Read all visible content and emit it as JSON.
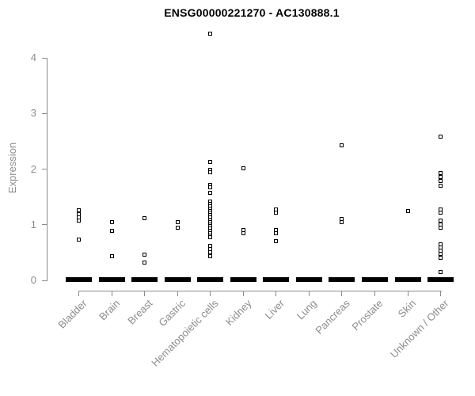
{
  "chart_data": {
    "type": "scatter",
    "title": "ENSG00000221270 - AC130888.1",
    "ylabel": "Expression",
    "yticks": [
      "0",
      "1",
      "2",
      "3",
      "4"
    ],
    "ylim": [
      0,
      4.6
    ],
    "grid": false,
    "legend": false,
    "marker": "open-square",
    "colors": {
      "points": "#000000",
      "axis": "#8c8c8c",
      "text": "#8c8c8c",
      "title": "#000000"
    },
    "categories": [
      "Bladder",
      "Brain",
      "Breast",
      "Gastric",
      "Hematopoietic cells",
      "Kidney",
      "Liver",
      "Lung",
      "Pancreas",
      "Prostate",
      "Skin",
      "Unknown / Other"
    ],
    "series": [
      {
        "category": "Bladder",
        "values": [
          1.26,
          1.19,
          1.13,
          1.08,
          0.74
        ],
        "zero_cluster": true
      },
      {
        "category": "Brain",
        "values": [
          1.05,
          0.89,
          0.44
        ],
        "zero_cluster": true
      },
      {
        "category": "Breast",
        "values": [
          1.12,
          0.46,
          0.32
        ],
        "zero_cluster": true
      },
      {
        "category": "Gastric",
        "values": [
          1.05,
          0.94
        ],
        "zero_cluster": true
      },
      {
        "category": "Hematopoietic cells",
        "values": [
          4.43,
          2.13,
          1.98,
          1.94,
          1.71,
          1.67,
          1.58,
          1.41,
          1.37,
          1.33,
          1.29,
          1.25,
          1.21,
          1.17,
          1.13,
          1.09,
          1.05,
          1.01,
          0.97,
          0.93,
          0.89,
          0.85,
          0.81,
          0.77,
          0.62,
          0.56,
          0.5,
          0.43
        ],
        "zero_cluster": true
      },
      {
        "category": "Kidney",
        "values": [
          2.01,
          0.91,
          0.85
        ],
        "zero_cluster": true
      },
      {
        "category": "Liver",
        "values": [
          1.27,
          1.21,
          0.9,
          0.85,
          0.7
        ],
        "zero_cluster": true
      },
      {
        "category": "Lung",
        "values": [],
        "zero_cluster": true
      },
      {
        "category": "Pancreas",
        "values": [
          2.42,
          1.11,
          1.05
        ],
        "zero_cluster": true
      },
      {
        "category": "Prostate",
        "values": [],
        "zero_cluster": true
      },
      {
        "category": "Skin",
        "values": [
          1.25
        ],
        "zero_cluster": true
      },
      {
        "category": "Unknown / Other",
        "values": [
          2.58,
          1.93,
          1.86,
          1.78,
          1.7,
          1.27,
          1.21,
          1.07,
          1.0,
          0.95,
          0.65,
          0.59,
          0.54,
          0.48,
          0.4,
          0.15
        ],
        "zero_cluster": true
      }
    ]
  }
}
